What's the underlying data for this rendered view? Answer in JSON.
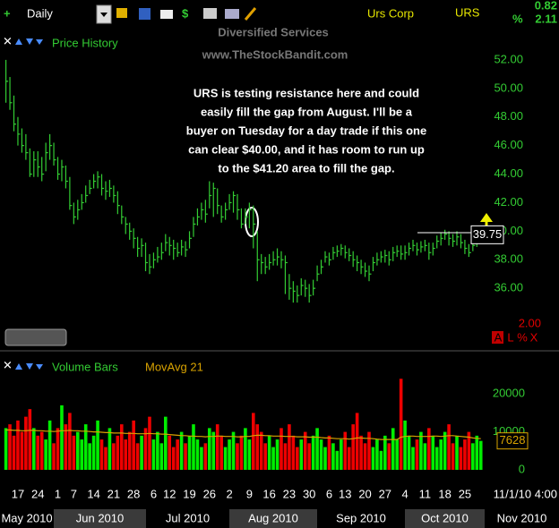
{
  "toolbar": {
    "interval": "Daily",
    "company": "Urs Corp",
    "symbol": "URS",
    "change": "0.82",
    "percent_sign": "%",
    "percent": "2.11"
  },
  "watermark": {
    "sector": "Diversified Services",
    "site": "www.TheStockBandit.com"
  },
  "chart_data": [
    {
      "type": "ohlc",
      "title": "Price History",
      "color": "#33cc33",
      "annotation": [
        "URS is testing resistance here and could",
        "easily fill the gap from August.  I'll be a",
        "buyer on Tuesday for a day trade if this one",
        "can clear $40.00, and it has room to run up",
        "to the $41.20 area to fill the gap."
      ],
      "resistance": 39.9,
      "ylim": [
        32,
        54
      ],
      "yticks": [
        {
          "value": 36,
          "label": "36.00"
        },
        {
          "value": 38,
          "label": "38.00"
        },
        {
          "value": 40,
          "label": "40.00"
        },
        {
          "value": 42,
          "label": "42.00"
        },
        {
          "value": 44,
          "label": "44.00"
        },
        {
          "value": 46,
          "label": "46.00"
        },
        {
          "value": 48,
          "label": "48.00"
        },
        {
          "value": 50,
          "label": "50.00"
        },
        {
          "value": 52,
          "label": "52.00"
        }
      ],
      "footer_value": "2.00",
      "footer_flags": [
        "A",
        "L",
        "%",
        "X"
      ],
      "high": [
        52.0,
        50.8,
        49.5,
        48.0,
        47.2,
        46.8,
        45.8,
        45.6,
        45.6,
        45.2,
        46.2,
        46.8,
        46.2,
        45.2,
        45.0,
        44.6,
        43.8,
        42.0,
        42.2,
        42.6,
        43.2,
        43.6,
        44.0,
        44.2,
        44.0,
        43.5,
        43.6,
        43.2,
        42.8,
        41.8,
        41.0,
        40.6,
        40.2,
        39.6,
        39.5,
        39.2,
        38.4,
        38.5,
        38.9,
        39.2,
        39.8,
        39.6,
        39.4,
        39.2,
        39.4,
        39.3,
        40.0,
        41.0,
        41.6,
        42.0,
        42.2,
        43.5,
        43.4,
        43.0,
        41.8,
        42.0,
        42.6,
        42.8,
        42.6,
        41.6,
        41.6,
        42.0,
        41.8,
        40.0,
        38.4,
        38.2,
        38.4,
        38.6,
        38.8,
        38.6,
        38.3,
        37.0,
        36.5,
        36.2,
        36.7,
        36.6,
        36.3,
        36.6,
        37.6,
        38.0,
        38.6,
        38.5,
        38.9,
        39.0,
        39.1,
        39.0,
        38.8,
        38.6,
        38.3,
        38.0,
        37.8,
        37.6,
        38.2,
        38.5,
        38.6,
        38.7,
        38.6,
        38.9,
        39.0,
        39.0,
        39.0,
        39.2,
        39.4,
        39.2,
        39.3,
        39.4,
        39.2,
        39.2,
        39.7,
        39.9,
        40.1,
        40.0,
        39.8,
        40.0,
        39.8,
        39.4,
        39.1,
        39.4,
        39.7,
        39.9
      ],
      "low": [
        49.0,
        48.5,
        47.0,
        46.0,
        45.5,
        45.0,
        43.8,
        43.8,
        43.8,
        43.5,
        44.2,
        45.0,
        44.6,
        43.6,
        43.5,
        43.0,
        41.5,
        40.5,
        40.8,
        41.5,
        42.0,
        42.6,
        43.0,
        43.0,
        42.5,
        42.2,
        42.4,
        42.0,
        41.2,
        40.5,
        39.8,
        39.4,
        38.8,
        38.2,
        38.2,
        37.2,
        37.0,
        37.4,
        37.8,
        38.0,
        38.6,
        38.3,
        38.0,
        38.2,
        38.3,
        38.2,
        38.8,
        39.6,
        40.4,
        40.8,
        40.6,
        41.6,
        41.0,
        41.2,
        40.6,
        40.8,
        41.5,
        41.3,
        40.8,
        40.2,
        40.5,
        40.2,
        38.8,
        36.5,
        37.0,
        37.0,
        37.3,
        37.6,
        37.6,
        37.4,
        35.6,
        35.2,
        35.0,
        35.0,
        35.5,
        35.4,
        35.0,
        35.5,
        36.5,
        37.0,
        37.8,
        37.6,
        38.0,
        38.2,
        38.3,
        38.1,
        37.9,
        37.5,
        37.2,
        37.0,
        36.8,
        36.5,
        37.2,
        37.6,
        37.8,
        37.8,
        37.6,
        37.9,
        38.2,
        38.0,
        38.0,
        38.3,
        38.6,
        38.3,
        38.5,
        38.6,
        38.0,
        38.3,
        38.8,
        39.0,
        39.4,
        39.0,
        38.9,
        39.0,
        38.8,
        38.4,
        38.2,
        38.6,
        38.9,
        39.2
      ],
      "close": [
        50.5,
        49.0,
        47.5,
        46.8,
        46.0,
        45.5,
        44.0,
        45.0,
        44.5,
        44.0,
        45.5,
        46.0,
        45.0,
        44.0,
        44.5,
        43.5,
        41.8,
        41.0,
        41.5,
        42.0,
        42.5,
        43.0,
        43.5,
        43.8,
        43.0,
        42.8,
        43.0,
        42.5,
        41.8,
        41.0,
        40.5,
        40.0,
        39.5,
        38.8,
        39.0,
        37.8,
        37.5,
        38.0,
        38.2,
        38.5,
        39.2,
        39.0,
        38.8,
        38.5,
        38.9,
        38.7,
        39.5,
        40.5,
        41.0,
        41.5,
        41.2,
        42.5,
        43.0,
        41.8,
        41.0,
        41.5,
        42.0,
        42.5,
        41.5,
        40.5,
        41.0,
        41.5,
        40.5,
        38.0,
        37.8,
        37.5,
        37.8,
        38.0,
        38.2,
        38.0,
        37.8,
        36.0,
        35.8,
        35.5,
        36.2,
        36.0,
        35.5,
        36.0,
        37.0,
        37.5,
        38.2,
        38.0,
        38.5,
        38.6,
        38.8,
        38.5,
        38.3,
        38.0,
        37.8,
        37.5,
        37.2,
        37.0,
        37.8,
        38.0,
        38.2,
        38.3,
        38.0,
        38.5,
        38.6,
        38.4,
        38.5,
        38.8,
        39.0,
        38.7,
        38.9,
        39.0,
        38.5,
        38.8,
        39.3,
        39.5,
        39.8,
        39.5,
        39.3,
        39.6,
        39.2,
        38.8,
        38.5,
        39.0,
        39.3,
        39.75
      ]
    },
    {
      "type": "bar",
      "title": "Volume Bars",
      "up_color": "#00ee00",
      "down_color": "#ee0000",
      "last_date": "11/1/10 4:00",
      "months": [
        "May 2010",
        "Jun 2010",
        "Jul 2010",
        "Aug 2010",
        "Sep 2010",
        "Oct 2010",
        "Nov 2010"
      ],
      "categories": [
        null,
        null,
        null,
        "17",
        null,
        null,
        null,
        null,
        "24",
        null,
        null,
        null,
        null,
        "1",
        null,
        null,
        null,
        "7",
        null,
        null,
        null,
        null,
        "14",
        null,
        null,
        null,
        null,
        "21",
        null,
        null,
        null,
        null,
        "28",
        null,
        null,
        null,
        null,
        "6",
        null,
        null,
        null,
        "12",
        null,
        null,
        null,
        null,
        "19",
        null,
        null,
        null,
        null,
        "26",
        null,
        null,
        null,
        null,
        "2",
        null,
        null,
        null,
        null,
        "9",
        null,
        null,
        null,
        null,
        "16",
        null,
        null,
        null,
        null,
        "23",
        null,
        null,
        null,
        null,
        "30",
        null,
        null,
        null,
        null,
        "6",
        null,
        null,
        null,
        "13",
        null,
        null,
        null,
        null,
        "20",
        null,
        null,
        null,
        null,
        "27",
        null,
        null,
        null,
        null,
        "4",
        null,
        null,
        null,
        null,
        "11",
        null,
        null,
        null,
        null,
        "18",
        null,
        null,
        null,
        null,
        "25",
        null,
        null,
        null,
        null
      ],
      "ylim": [
        0,
        25000
      ],
      "yticks": [
        0,
        10000,
        20000
      ],
      "series": [
        {
          "name": "Volume Bars",
          "values": [
            11000,
            12000,
            9000,
            13000,
            10000,
            14000,
            16000,
            11000,
            9000,
            10000,
            8000,
            13000,
            7000,
            11000,
            17000,
            12000,
            15000,
            9000,
            10000,
            8000,
            12000,
            7000,
            9000,
            13000,
            8000,
            6000,
            11000,
            7000,
            9000,
            12000,
            8000,
            10000,
            13000,
            7000,
            9000,
            11000,
            14000,
            8000,
            10000,
            7000,
            14000,
            9000,
            6000,
            8000,
            10000,
            7000,
            9000,
            12000,
            8000,
            6000,
            7000,
            11000,
            10000,
            12000,
            9000,
            6000,
            8000,
            10000,
            7000,
            9000,
            11000,
            8000,
            15000,
            12000,
            10000,
            7000,
            9000,
            6000,
            8000,
            11000,
            7000,
            12000,
            9000,
            6000,
            8000,
            10000,
            7000,
            9000,
            11000,
            8000,
            6000,
            9000,
            7000,
            5000,
            8000,
            10000,
            6000,
            12000,
            15000,
            9000,
            7000,
            10000,
            6000,
            8000,
            5000,
            9000,
            7000,
            11000,
            8000,
            24000,
            13000,
            9000,
            6000,
            8000,
            10000,
            7000,
            11000,
            9000,
            6000,
            8000,
            10000,
            12000,
            7000,
            9000,
            6000,
            8000,
            10000,
            7000,
            9000,
            7628
          ]
        },
        {
          "name": "MovAvg 21",
          "color": "#d9a300",
          "values": [
            10500,
            10500,
            10400,
            10400,
            10300,
            10300,
            10400,
            10400,
            10300,
            10300,
            10200,
            10200,
            10100,
            10200,
            10300,
            10300,
            10400,
            10300,
            10300,
            10200,
            10200,
            10100,
            10000,
            10000,
            9900,
            9800,
            9800,
            9700,
            9700,
            9700,
            9600,
            9600,
            9600,
            9500,
            9500,
            9500,
            9600,
            9500,
            9500,
            9400,
            9400,
            9300,
            9200,
            9100,
            9000,
            9000,
            8900,
            8900,
            8800,
            8800,
            8700,
            8800,
            8800,
            8900,
            8900,
            8800,
            8800,
            8800,
            8700,
            8700,
            8800,
            8800,
            9000,
            9100,
            9100,
            9000,
            9000,
            8900,
            8900,
            8900,
            8800,
            8800,
            8800,
            8700,
            8700,
            8700,
            8600,
            8600,
            8600,
            8500,
            8400,
            8400,
            8300,
            8200,
            8200,
            8200,
            8100,
            8200,
            8400,
            8400,
            8300,
            8300,
            8200,
            8100,
            8000,
            8000,
            8000,
            8000,
            8000,
            8600,
            8800,
            8900,
            8900,
            8800,
            8800,
            8800,
            8800,
            8900,
            8900,
            8800,
            8900,
            9000,
            9000,
            8900,
            8800,
            8700,
            8600,
            8400,
            8300,
            8200
          ]
        }
      ]
    }
  ]
}
